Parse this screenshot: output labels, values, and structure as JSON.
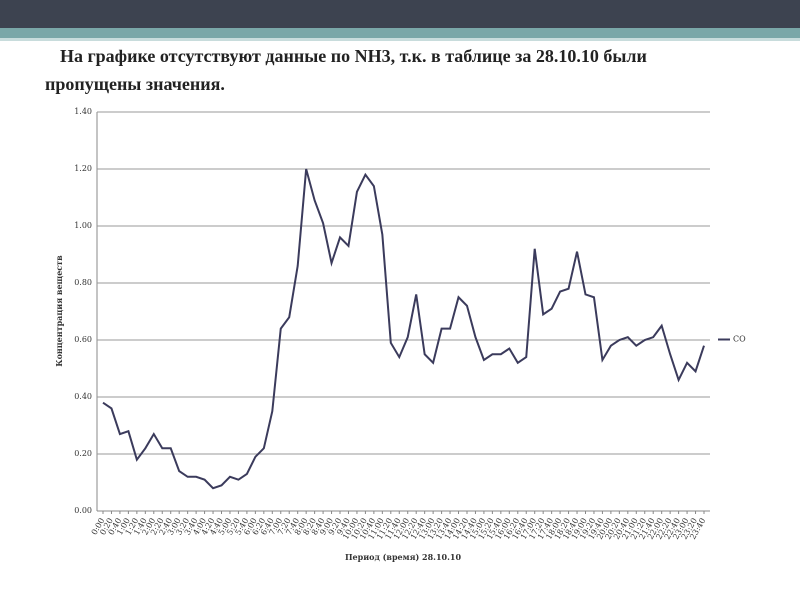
{
  "chart_data": {
    "type": "line",
    "title": "На графике отсутствуют данные по NH3, т.к. в таблице за 28.10.10 были пропущены значения.",
    "xlabel": "Период (время) 28.10.10",
    "ylabel": "Концентрация веществ",
    "categories": [
      "0:00",
      "0:20",
      "0:40",
      "1:00",
      "1:20",
      "1:40",
      "2:00",
      "2:20",
      "2:40",
      "3:00",
      "3:20",
      "3:40",
      "4:00",
      "4:20",
      "4:40",
      "5:00",
      "5:20",
      "5:40",
      "6:00",
      "6:20",
      "6:40",
      "7:00",
      "7:20",
      "7:40",
      "8:00",
      "8:20",
      "8:40",
      "9:00",
      "9:20",
      "9:40",
      "10:00",
      "10:20",
      "10:40",
      "11:00",
      "11:20",
      "11:40",
      "12:00",
      "12:20",
      "12:40",
      "13:00",
      "13:20",
      "13:40",
      "14:00",
      "14:20",
      "14:40",
      "15:00",
      "15:20",
      "15:40",
      "16:00",
      "16:20",
      "16:40",
      "17:00",
      "17:20",
      "17:40",
      "18:00",
      "18:20",
      "18:40",
      "19:00",
      "19:20",
      "19:40",
      "20:00",
      "20:20",
      "20:40",
      "21:00",
      "21:20",
      "21:40",
      "22:00",
      "22:20",
      "22:40",
      "23:00",
      "23:20",
      "23:40"
    ],
    "series": [
      {
        "name": "CO",
        "color": "#3b3b5c",
        "values": [
          0.38,
          0.36,
          0.27,
          0.28,
          0.18,
          0.22,
          0.27,
          0.22,
          0.22,
          0.14,
          0.12,
          0.12,
          0.11,
          0.08,
          0.09,
          0.12,
          0.11,
          0.13,
          0.19,
          0.22,
          0.35,
          0.64,
          0.68,
          0.86,
          1.2,
          1.09,
          1.01,
          0.87,
          0.96,
          0.93,
          1.12,
          1.18,
          1.14,
          0.97,
          0.59,
          0.54,
          0.61,
          0.76,
          0.55,
          0.52,
          0.64,
          0.64,
          0.75,
          0.72,
          0.61,
          0.53,
          0.55,
          0.55,
          0.57,
          0.52,
          0.54,
          0.92,
          0.69,
          0.71,
          0.77,
          0.78,
          0.91,
          0.76,
          0.75,
          0.53,
          0.58,
          0.6,
          0.61,
          0.58,
          0.6,
          0.61,
          0.65,
          0.55,
          0.46,
          0.52,
          0.49,
          0.58
        ]
      }
    ],
    "ylim": [
      0,
      1.4
    ],
    "yticks": [
      {
        "value": 0,
        "label": "0.00"
      },
      {
        "value": 0.2,
        "label": "0.20"
      },
      {
        "value": 0.4,
        "label": "0.40"
      },
      {
        "value": 0.6,
        "label": "0.60"
      },
      {
        "value": 0.8,
        "label": "0.80"
      },
      {
        "value": 1.0,
        "label": "1.00"
      },
      {
        "value": 1.2,
        "label": "1.20"
      },
      {
        "value": 1.4,
        "label": "1.40"
      }
    ],
    "grid": true,
    "legend": "right"
  }
}
